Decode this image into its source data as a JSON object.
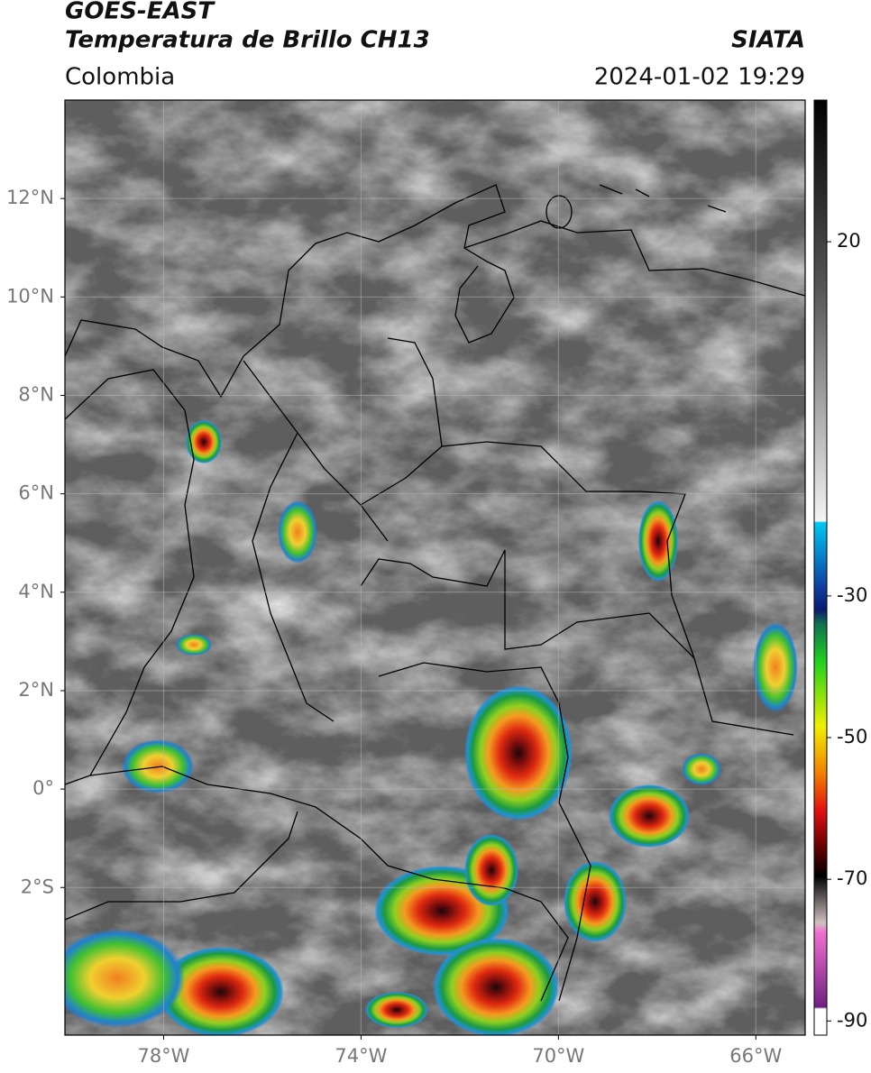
{
  "map": {
    "title": "GOES-EAST",
    "subtitle": "Temperatura de Brillo CH13",
    "source": "SIATA",
    "region": "Colombia",
    "datetime": "2024-01-02 19:29",
    "lonlim": [
      -80,
      -65
    ],
    "latlim": [
      -5,
      14
    ],
    "lon_ticks": [
      {
        "value": -78,
        "label": "78°W"
      },
      {
        "value": -74,
        "label": "74°W"
      },
      {
        "value": -70,
        "label": "70°W"
      },
      {
        "value": -66,
        "label": "66°W"
      }
    ],
    "lat_ticks": [
      {
        "value": 12,
        "label": "12°N"
      },
      {
        "value": 10,
        "label": "10°N"
      },
      {
        "value": 8,
        "label": "8°N"
      },
      {
        "value": 6,
        "label": "6°N"
      },
      {
        "value": 4,
        "label": "4°N"
      },
      {
        "value": 2,
        "label": "2°N"
      },
      {
        "value": 0,
        "label": "0°"
      },
      {
        "value": -2,
        "label": "2°S"
      }
    ],
    "colorbar": {
      "lim": [
        -92,
        40
      ],
      "ticks": [
        20,
        -30,
        -50,
        -70,
        -90
      ]
    }
  }
}
